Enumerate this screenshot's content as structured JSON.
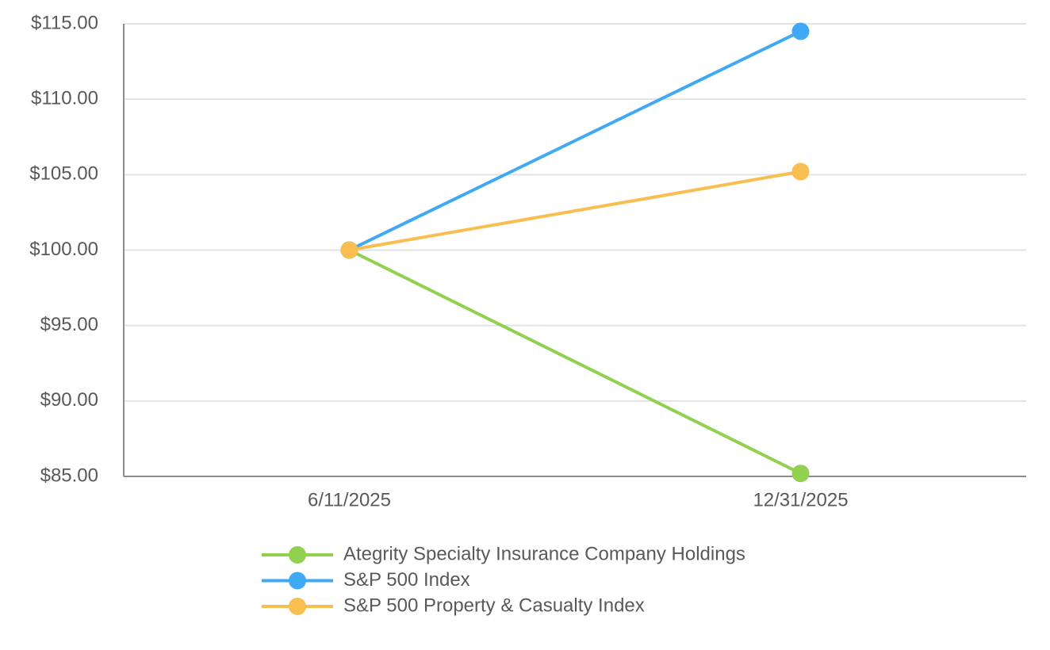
{
  "chart_data": {
    "type": "line",
    "categories": [
      "6/11/2025",
      "12/31/2025"
    ],
    "series": [
      {
        "name": "Ategrity Specialty Insurance Company Holdings",
        "color": "#92d050",
        "values": [
          100,
          85.2
        ]
      },
      {
        "name": "S&P 500 Index",
        "color": "#3fa9f5",
        "values": [
          100,
          114.5
        ]
      },
      {
        "name": "S&P 500 Property & Casualty Index",
        "color": "#f8be50",
        "values": [
          100,
          105.2
        ]
      }
    ],
    "ylim": [
      85,
      115
    ],
    "yticks": [
      {
        "value": 85,
        "label": "$85.00"
      },
      {
        "value": 90,
        "label": "$90.00"
      },
      {
        "value": 95,
        "label": "$95.00"
      },
      {
        "value": 100,
        "label": "$100.00"
      },
      {
        "value": 105,
        "label": "$105.00"
      },
      {
        "value": 110,
        "label": "$110.00"
      },
      {
        "value": 115,
        "label": "$115.00"
      }
    ],
    "grid": true,
    "legend": "bottom"
  }
}
